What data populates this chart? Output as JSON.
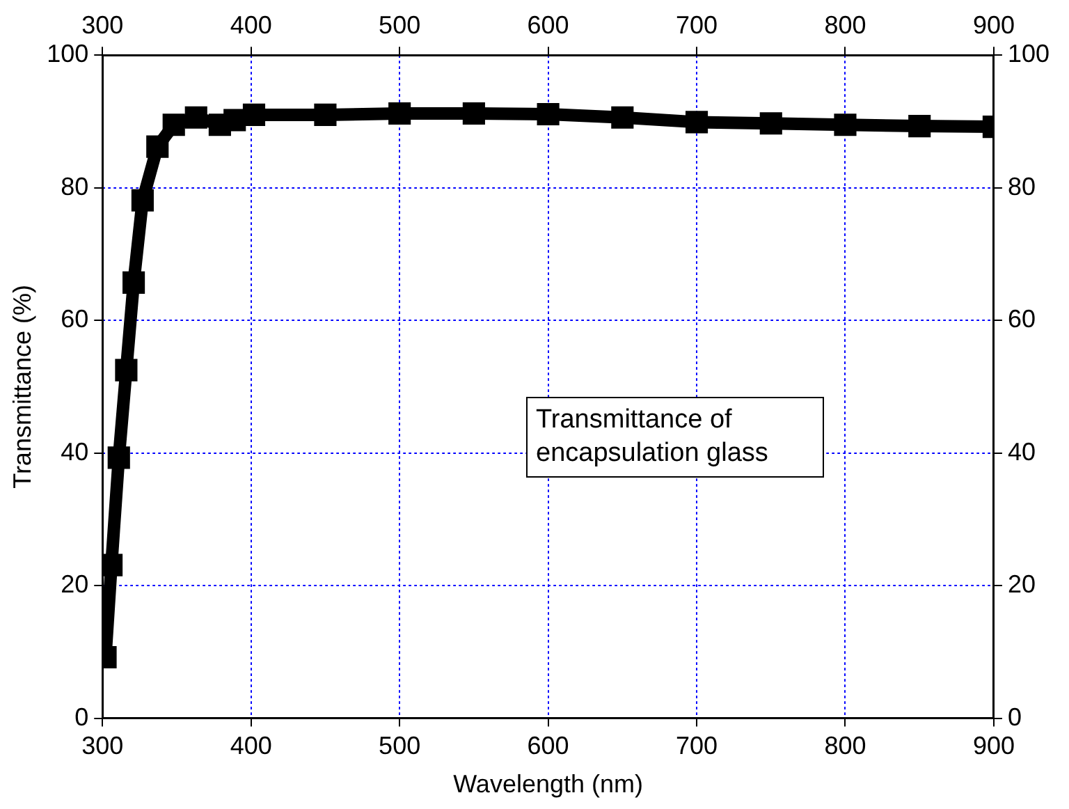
{
  "chart_data": {
    "type": "line",
    "xlabel": "Wavelength (nm)",
    "ylabel": "Transmittance (%)",
    "annotations": [
      "Transmittance of encapsulation glass"
    ],
    "xlim": [
      300,
      900
    ],
    "xticks": [
      300,
      400,
      500,
      600,
      700,
      800,
      900
    ],
    "x2lim": [
      300,
      900
    ],
    "x2ticks": [
      300,
      400,
      500,
      600,
      700,
      800,
      900
    ],
    "ylim": [
      0,
      100
    ],
    "yticks": [
      0,
      20,
      40,
      60,
      80,
      100
    ],
    "y2lim": [
      0,
      100
    ],
    "y2ticks": [
      0,
      20,
      40,
      60,
      80,
      100
    ],
    "grid": true,
    "marker": "square",
    "line_style": "solid",
    "series": [
      {
        "color": "#000000",
        "x": [
          302,
          306,
          311,
          316,
          321,
          327,
          337,
          348,
          363,
          379,
          389,
          402,
          450,
          500,
          550,
          600,
          650,
          700,
          750,
          800,
          850,
          900
        ],
        "values": [
          9.2,
          23.1,
          39.3,
          52.5,
          65.7,
          78.1,
          86.2,
          89.5,
          90.6,
          89.5,
          90.2,
          91.0,
          91.0,
          91.2,
          91.2,
          91.1,
          90.6,
          89.9,
          89.7,
          89.5,
          89.3,
          89.2
        ]
      }
    ]
  }
}
